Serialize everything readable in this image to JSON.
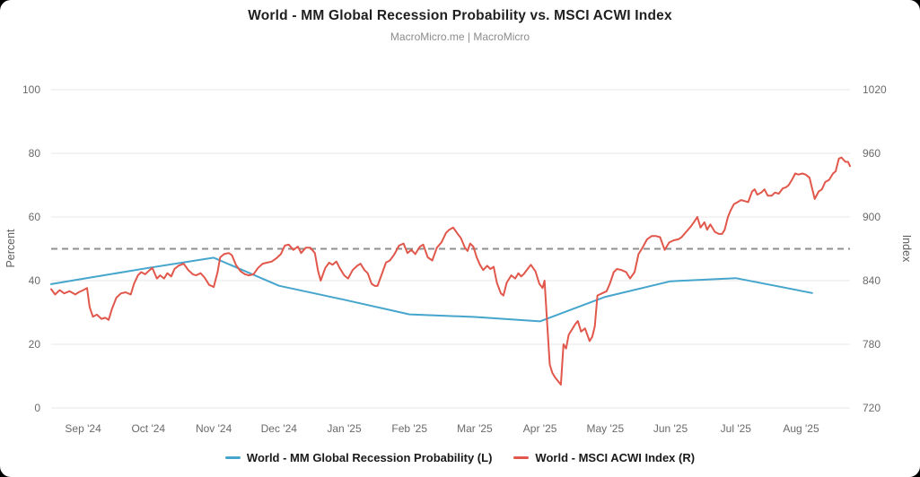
{
  "header": {
    "title": "World - MM Global Recession Probability vs. MSCI ACWI Index",
    "subtitle": "MacroMicro.me | MacroMicro"
  },
  "chart_data": {
    "type": "line",
    "title": "World - MM Global Recession Probability vs. MSCI ACWI Index",
    "subtitle": "MacroMicro.me | MacroMicro",
    "grid": "horizontal-only",
    "grid_color": "#e7e7e7",
    "legend_position": "bottom-center",
    "x_ticks": [
      "Sep '24",
      "Oct '24",
      "Nov '24",
      "Dec '24",
      "Jan '25",
      "Feb '25",
      "Mar '25",
      "Apr '25",
      "May '25",
      "Jun '25",
      "Jul '25",
      "Aug '25"
    ],
    "x_domain": [
      -0.49,
      11.75
    ],
    "y_left": {
      "label": "Percent",
      "min": 0,
      "max": 100,
      "ticks": [
        0,
        20,
        40,
        60,
        80,
        100
      ]
    },
    "y_right": {
      "label": "Index",
      "min": 720,
      "max": 1020,
      "ticks": [
        720,
        780,
        840,
        900,
        960,
        1020
      ]
    },
    "reference_line": {
      "axis": "left",
      "value": 50,
      "style": "dashed",
      "color": "#8f8f8f"
    },
    "series": [
      {
        "name": "World - MM Global Recession Probability (L)",
        "axis": "left",
        "color": "#46a5cd",
        "points": [
          [
            -0.49,
            38.9
          ],
          [
            0,
            40.6
          ],
          [
            1,
            44
          ],
          [
            2,
            47.2
          ],
          [
            3,
            38.4
          ],
          [
            4,
            34
          ],
          [
            5,
            29.4
          ],
          [
            6,
            28.6
          ],
          [
            7,
            27.2
          ],
          [
            8,
            34.9
          ],
          [
            9,
            39.8
          ],
          [
            10,
            40.8
          ],
          [
            11.17,
            36.1
          ]
        ]
      },
      {
        "name": "World - MSCI ACWI Index (R)",
        "axis": "right",
        "color": "#e2574b",
        "points": [
          [
            -0.49,
            832
          ],
          [
            -0.43,
            827
          ],
          [
            -0.36,
            831
          ],
          [
            -0.29,
            828
          ],
          [
            -0.21,
            830
          ],
          [
            -0.12,
            827
          ],
          [
            -0.07,
            829
          ],
          [
            0,
            831
          ],
          [
            0.06,
            833
          ],
          [
            0.1,
            815
          ],
          [
            0.15,
            806
          ],
          [
            0.21,
            808
          ],
          [
            0.28,
            804
          ],
          [
            0.34,
            805
          ],
          [
            0.39,
            803
          ],
          [
            0.44,
            813
          ],
          [
            0.51,
            824
          ],
          [
            0.58,
            828
          ],
          [
            0.65,
            829
          ],
          [
            0.73,
            827
          ],
          [
            0.78,
            837
          ],
          [
            0.84,
            845
          ],
          [
            0.89,
            848
          ],
          [
            0.95,
            846
          ],
          [
            1.02,
            850
          ],
          [
            1.06,
            852
          ],
          [
            1.13,
            842
          ],
          [
            1.18,
            845
          ],
          [
            1.24,
            842
          ],
          [
            1.29,
            847
          ],
          [
            1.35,
            844
          ],
          [
            1.4,
            851
          ],
          [
            1.46,
            854
          ],
          [
            1.54,
            856
          ],
          [
            1.61,
            850
          ],
          [
            1.68,
            846
          ],
          [
            1.73,
            845
          ],
          [
            1.8,
            847
          ],
          [
            1.86,
            843
          ],
          [
            1.93,
            836
          ],
          [
            2,
            834
          ],
          [
            2.06,
            848
          ],
          [
            2.1,
            862
          ],
          [
            2.16,
            865
          ],
          [
            2.23,
            866
          ],
          [
            2.28,
            864
          ],
          [
            2.34,
            855
          ],
          [
            2.41,
            849
          ],
          [
            2.48,
            846
          ],
          [
            2.54,
            845
          ],
          [
            2.61,
            846
          ],
          [
            2.68,
            852
          ],
          [
            2.75,
            856
          ],
          [
            2.82,
            857
          ],
          [
            2.89,
            858
          ],
          [
            2.96,
            861
          ],
          [
            3.03,
            865
          ],
          [
            3.09,
            873
          ],
          [
            3.15,
            874
          ],
          [
            3.22,
            869
          ],
          [
            3.29,
            872
          ],
          [
            3.34,
            866
          ],
          [
            3.41,
            871
          ],
          [
            3.48,
            871
          ],
          [
            3.55,
            866
          ],
          [
            3.6,
            849
          ],
          [
            3.64,
            840
          ],
          [
            3.71,
            852
          ],
          [
            3.77,
            857
          ],
          [
            3.82,
            855
          ],
          [
            3.88,
            858
          ],
          [
            3.93,
            852
          ],
          [
            4,
            845
          ],
          [
            4.06,
            842
          ],
          [
            4.13,
            850
          ],
          [
            4.2,
            854
          ],
          [
            4.25,
            856
          ],
          [
            4.31,
            850
          ],
          [
            4.36,
            847
          ],
          [
            4.42,
            837
          ],
          [
            4.47,
            835
          ],
          [
            4.51,
            835
          ],
          [
            4.57,
            845
          ],
          [
            4.64,
            857
          ],
          [
            4.7,
            859
          ],
          [
            4.77,
            865
          ],
          [
            4.84,
            873
          ],
          [
            4.91,
            875
          ],
          [
            4.97,
            866
          ],
          [
            5.03,
            869
          ],
          [
            5.09,
            865
          ],
          [
            5.16,
            872
          ],
          [
            5.21,
            874
          ],
          [
            5.28,
            862
          ],
          [
            5.35,
            859
          ],
          [
            5.42,
            871
          ],
          [
            5.49,
            876
          ],
          [
            5.56,
            885
          ],
          [
            5.61,
            888
          ],
          [
            5.67,
            890
          ],
          [
            5.74,
            884
          ],
          [
            5.79,
            880
          ],
          [
            5.85,
            871
          ],
          [
            5.89,
            868
          ],
          [
            5.93,
            875
          ],
          [
            5.98,
            872
          ],
          [
            6.03,
            862
          ],
          [
            6.08,
            855
          ],
          [
            6.13,
            850
          ],
          [
            6.19,
            854
          ],
          [
            6.24,
            851
          ],
          [
            6.29,
            853
          ],
          [
            6.34,
            838
          ],
          [
            6.4,
            828
          ],
          [
            6.44,
            826
          ],
          [
            6.49,
            838
          ],
          [
            6.56,
            845
          ],
          [
            6.62,
            842
          ],
          [
            6.67,
            847
          ],
          [
            6.71,
            844
          ],
          [
            6.75,
            846
          ],
          [
            6.81,
            851
          ],
          [
            6.86,
            855
          ],
          [
            6.93,
            849
          ],
          [
            6.99,
            837
          ],
          [
            7.04,
            833
          ],
          [
            7.07,
            840
          ],
          [
            7.11,
            800
          ],
          [
            7.15,
            761
          ],
          [
            7.19,
            753
          ],
          [
            7.23,
            749
          ],
          [
            7.28,
            745
          ],
          [
            7.32,
            742
          ],
          [
            7.36,
            780
          ],
          [
            7.4,
            776
          ],
          [
            7.44,
            789
          ],
          [
            7.5,
            795
          ],
          [
            7.54,
            799
          ],
          [
            7.58,
            802
          ],
          [
            7.63,
            792
          ],
          [
            7.69,
            795
          ],
          [
            7.76,
            783
          ],
          [
            7.8,
            787
          ],
          [
            7.84,
            797
          ],
          [
            7.88,
            826
          ],
          [
            7.95,
            828
          ],
          [
            8.02,
            830
          ],
          [
            8.07,
            837
          ],
          [
            8.13,
            848
          ],
          [
            8.18,
            851
          ],
          [
            8.25,
            850
          ],
          [
            8.32,
            848
          ],
          [
            8.38,
            842
          ],
          [
            8.45,
            848
          ],
          [
            8.51,
            865
          ],
          [
            8.57,
            871
          ],
          [
            8.64,
            879
          ],
          [
            8.71,
            882
          ],
          [
            8.78,
            882
          ],
          [
            8.84,
            881
          ],
          [
            8.91,
            869
          ],
          [
            8.98,
            876
          ],
          [
            9.05,
            878
          ],
          [
            9.12,
            879
          ],
          [
            9.17,
            881
          ],
          [
            9.24,
            886
          ],
          [
            9.31,
            891
          ],
          [
            9.37,
            896
          ],
          [
            9.41,
            900
          ],
          [
            9.46,
            890
          ],
          [
            9.52,
            895
          ],
          [
            9.56,
            888
          ],
          [
            9.61,
            893
          ],
          [
            9.68,
            886
          ],
          [
            9.74,
            884
          ],
          [
            9.79,
            884
          ],
          [
            9.83,
            888
          ],
          [
            9.88,
            900
          ],
          [
            9.92,
            906
          ],
          [
            9.97,
            912
          ],
          [
            10.03,
            914
          ],
          [
            10.08,
            916
          ],
          [
            10.14,
            915
          ],
          [
            10.19,
            914
          ],
          [
            10.25,
            924
          ],
          [
            10.29,
            926
          ],
          [
            10.33,
            921
          ],
          [
            10.39,
            923
          ],
          [
            10.44,
            926
          ],
          [
            10.49,
            920
          ],
          [
            10.55,
            920
          ],
          [
            10.6,
            923
          ],
          [
            10.66,
            922
          ],
          [
            10.72,
            927
          ],
          [
            10.77,
            928
          ],
          [
            10.81,
            930
          ],
          [
            10.87,
            936
          ],
          [
            10.91,
            941
          ],
          [
            10.96,
            940
          ],
          [
            11.02,
            941
          ],
          [
            11.07,
            940
          ],
          [
            11.13,
            937
          ],
          [
            11.17,
            927
          ],
          [
            11.21,
            917
          ],
          [
            11.27,
            924
          ],
          [
            11.32,
            926
          ],
          [
            11.37,
            933
          ],
          [
            11.43,
            935
          ],
          [
            11.49,
            941
          ],
          [
            11.53,
            943
          ],
          [
            11.58,
            955
          ],
          [
            11.62,
            956
          ],
          [
            11.68,
            952
          ],
          [
            11.72,
            952
          ],
          [
            11.75,
            948
          ]
        ]
      }
    ]
  }
}
